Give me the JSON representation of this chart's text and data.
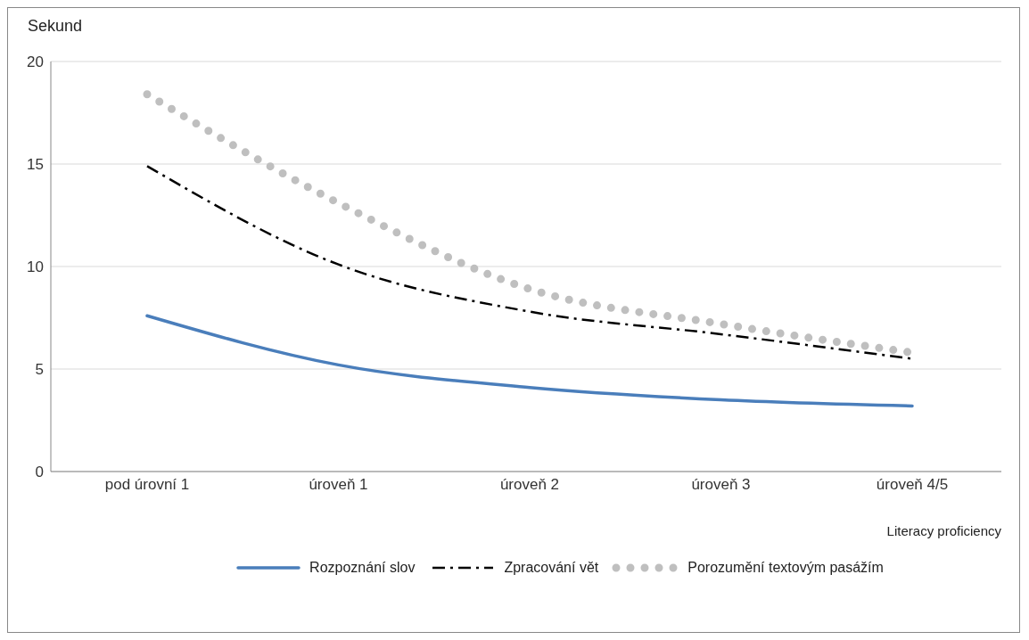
{
  "chart_data": {
    "type": "line",
    "ylabel": "Sekund",
    "xlabel": "Literacy proficiency",
    "categories": [
      "pod úrovní 1",
      "úroveň 1",
      "úroveň 2",
      "úroveň 3",
      "úroveň 4/5"
    ],
    "series": [
      {
        "name": "Rozpoznání slov",
        "color": "#4a7ebb",
        "line_style": "solid",
        "values": [
          7.6,
          5.2,
          4.1,
          3.5,
          3.2
        ]
      },
      {
        "name": "Zpracování vět",
        "color": "#000000",
        "line_style": "dashed",
        "values": [
          14.9,
          10.1,
          7.8,
          6.7,
          5.5
        ]
      },
      {
        "name": "Porozumění textovým pasážím",
        "color": "#bfbfbf",
        "line_style": "dotted",
        "values": [
          18.4,
          13.1,
          8.9,
          7.2,
          5.8
        ]
      }
    ],
    "ylim": [
      0,
      20
    ],
    "yticks": [
      0,
      5,
      10,
      15,
      20
    ],
    "grid": "y",
    "legend": "bottom",
    "marker": "none"
  }
}
